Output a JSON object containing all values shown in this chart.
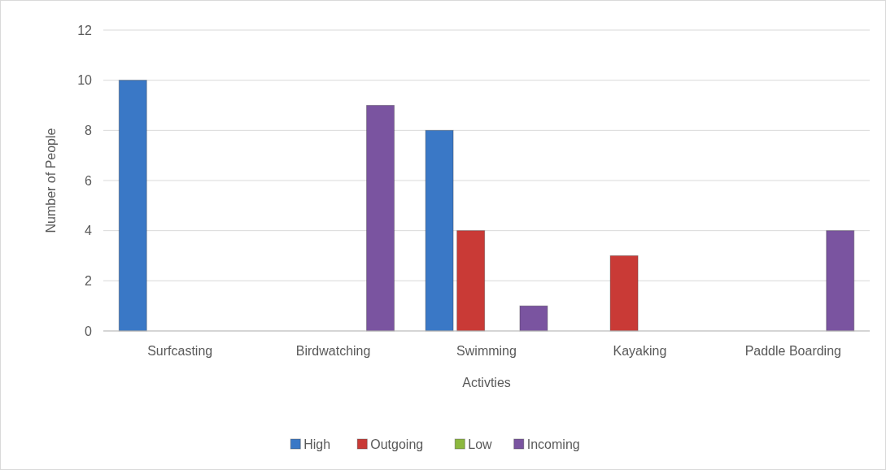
{
  "chart_data": {
    "type": "bar",
    "xlabel": "Activties",
    "ylabel": "Number of People",
    "categories": [
      "Surfcasting",
      "Birdwatching",
      "Swimming",
      "Kayaking",
      "Paddle Boarding"
    ],
    "series": [
      {
        "name": "High",
        "color": "#3a78c6",
        "values": [
          10,
          null,
          8,
          null,
          null
        ]
      },
      {
        "name": "Outgoing",
        "color": "#c93a36",
        "values": [
          null,
          null,
          4,
          3,
          null
        ]
      },
      {
        "name": "Low",
        "color": "#8cb83e",
        "values": [
          null,
          null,
          null,
          null,
          null
        ]
      },
      {
        "name": "Incoming",
        "color": "#7a54a0",
        "values": [
          null,
          9,
          1,
          null,
          4
        ]
      }
    ],
    "ylim": [
      0,
      12
    ],
    "yticks": [
      0,
      2,
      4,
      6,
      8,
      10,
      12
    ],
    "grid": "y",
    "legend": "bottom"
  }
}
